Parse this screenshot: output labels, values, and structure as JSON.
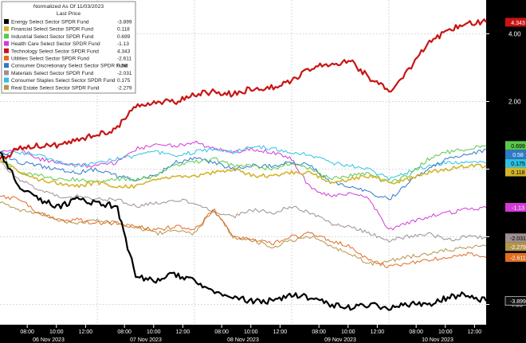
{
  "chart_data": {
    "type": "line",
    "legend": {
      "title": "Normalized As Of 11/03/2023",
      "subtitle": "Last Price",
      "placement": "top-left"
    },
    "ylim": [
      -4.6,
      5.0
    ],
    "y_ticks": [
      {
        "value": 4.0,
        "label": "4.00"
      },
      {
        "value": 2.0,
        "label": "2.00"
      },
      {
        "value": 0.0,
        "label": "0.00"
      },
      {
        "value": -2.0,
        "label": "-2.00"
      },
      {
        "value": -4.0,
        "label": "-4.00"
      }
    ],
    "x_ticks": [
      "08:00",
      "10:00",
      "12:00",
      "08:00",
      "10:00",
      "12:00",
      "08:00",
      "10:00",
      "12:00",
      "08:00",
      "10:00",
      "12:00",
      "08:00",
      "10:00",
      "12:00"
    ],
    "x_day_labels": [
      "06 Nov 2023",
      "07 Nov 2023",
      "08 Nov 2023",
      "09 Nov 2023",
      "10 Nov 2023"
    ],
    "grid": true,
    "x": [
      0,
      0.04,
      0.08,
      0.12,
      0.16,
      0.2,
      0.24,
      0.28,
      0.32,
      0.36,
      0.4,
      0.44,
      0.48,
      0.52,
      0.56,
      0.6,
      0.64,
      0.68,
      0.72,
      0.76,
      0.8,
      0.84,
      0.88,
      0.92,
      0.96,
      1.0
    ],
    "series": [
      {
        "name": "Energy Select Sector SPDR Fund",
        "last": "-3.899",
        "color": "#000000",
        "values": [
          0.5,
          -0.5,
          -0.9,
          -1.1,
          -0.9,
          -1.0,
          -1.1,
          -3.2,
          -3.3,
          -3.1,
          -3.3,
          -3.7,
          -3.8,
          -3.9,
          -3.9,
          -3.7,
          -3.8,
          -4.0,
          -4.1,
          -4.0,
          -4.1,
          -4.0,
          -4.0,
          -3.8,
          -3.7,
          -3.9
        ]
      },
      {
        "name": "Financial Select Sector SPDR Fund",
        "last": "0.118",
        "color": "#d4b42c",
        "values": [
          0.3,
          -0.1,
          -0.3,
          -0.4,
          -0.5,
          -0.4,
          -0.5,
          -0.5,
          -0.3,
          -0.2,
          -0.2,
          -0.1,
          0.0,
          -0.2,
          -0.2,
          -0.1,
          -0.1,
          -0.4,
          -0.3,
          -0.2,
          -0.4,
          -0.3,
          -0.1,
          0.0,
          0.1,
          0.1
        ]
      },
      {
        "name": "Industrial Select Sector SPDR Fund",
        "last": "0.699",
        "color": "#59c849",
        "values": [
          0.4,
          -0.1,
          -0.2,
          -0.3,
          -0.3,
          -0.4,
          -0.3,
          -0.3,
          -0.2,
          0.1,
          0.2,
          0.3,
          0.1,
          0.1,
          0.0,
          0.2,
          0.0,
          -0.3,
          -0.2,
          -0.1,
          -0.4,
          -0.2,
          0.3,
          0.5,
          0.6,
          0.7
        ]
      },
      {
        "name": "Health Care Select Sector SPDR Fund",
        "last": "-1.13",
        "color": "#d23ad8",
        "values": [
          0.5,
          0.6,
          0.3,
          0.2,
          0.1,
          0.1,
          0.2,
          0.6,
          0.7,
          0.7,
          0.8,
          0.6,
          0.5,
          0.6,
          0.5,
          0.3,
          -0.6,
          -0.8,
          -0.7,
          -0.9,
          -1.8,
          -1.6,
          -1.4,
          -1.3,
          -1.2,
          -1.13
        ]
      },
      {
        "name": "Technology Select Sector SPDR Fund",
        "last": "4.343",
        "color": "#c81414",
        "values": [
          0.3,
          0.6,
          0.7,
          0.7,
          0.9,
          1.0,
          1.2,
          1.9,
          2.0,
          2.0,
          2.2,
          2.3,
          2.2,
          2.4,
          2.4,
          2.6,
          3.0,
          3.1,
          3.2,
          2.7,
          2.3,
          2.9,
          3.7,
          4.1,
          4.3,
          4.343
        ]
      },
      {
        "name": "Utilities Select Sector SPDR Fund",
        "last": "-2.611",
        "color": "#e26d22",
        "values": [
          -0.8,
          -0.9,
          -1.3,
          -1.5,
          -1.5,
          -1.6,
          -1.6,
          -1.7,
          -1.8,
          -1.7,
          -1.8,
          -1.2,
          -2.0,
          -2.1,
          -2.2,
          -2.0,
          -1.9,
          -2.1,
          -2.3,
          -2.7,
          -2.9,
          -2.8,
          -2.7,
          -2.6,
          -2.5,
          -2.611
        ]
      },
      {
        "name": "Consumer Discretionary Select Sector SPDR Fund",
        "last": "0.58",
        "color": "#2f79c9",
        "values": [
          0.5,
          0.2,
          0.1,
          0.0,
          -0.1,
          0.0,
          -0.2,
          -0.3,
          -0.2,
          0.2,
          0.3,
          0.2,
          0.0,
          0.1,
          0.1,
          0.2,
          0.1,
          -0.4,
          -0.5,
          -0.7,
          -0.9,
          -0.4,
          0.0,
          0.3,
          0.4,
          0.58
        ]
      },
      {
        "name": "Materials Select Sector SPDR Fund",
        "last": "-2.031",
        "color": "#9f8f8f",
        "values": [
          0.2,
          -0.3,
          -0.6,
          -0.8,
          -0.8,
          -0.9,
          -0.9,
          -1.1,
          -1.0,
          -0.9,
          -1.0,
          -1.3,
          -1.4,
          -1.2,
          -1.3,
          -1.1,
          -1.3,
          -1.6,
          -1.7,
          -1.9,
          -2.1,
          -2.0,
          -1.9,
          -2.1,
          -2.0,
          -2.031
        ]
      },
      {
        "name": "Consumer Staples Select Sector SPDR Fund",
        "last": "0.175",
        "color": "#2cc2e2",
        "values": [
          0.4,
          0.5,
          0.4,
          0.2,
          0.1,
          0.2,
          0.3,
          0.4,
          0.5,
          0.4,
          0.5,
          0.6,
          0.5,
          0.7,
          0.6,
          0.5,
          0.4,
          0.2,
          0.1,
          0.0,
          -0.3,
          -0.1,
          0.1,
          0.2,
          0.2,
          0.175
        ]
      },
      {
        "name": "Real Estate Select Sector SPDR Fund",
        "last": "-2.279",
        "color": "#b3944b",
        "values": [
          -1.0,
          -1.2,
          -1.3,
          -1.5,
          -1.6,
          -1.5,
          -1.6,
          -1.7,
          -1.9,
          -1.8,
          -1.9,
          -1.2,
          -2.0,
          -2.1,
          -2.3,
          -2.1,
          -2.0,
          -2.3,
          -2.5,
          -2.8,
          -2.7,
          -2.6,
          -2.5,
          -2.4,
          -2.3,
          -2.279
        ]
      }
    ]
  }
}
